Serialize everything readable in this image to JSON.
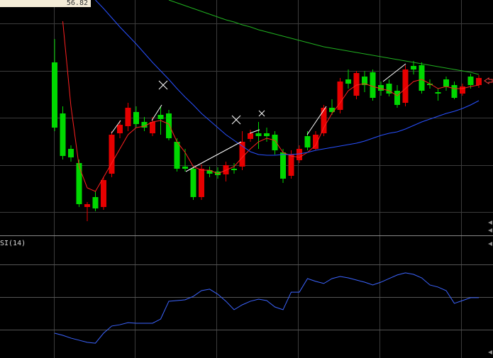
{
  "chart_data": [
    {
      "type": "candlestick",
      "label": "56.82",
      "ylim": [
        0,
        330
      ],
      "yticks": [
        31,
        97,
        164,
        230,
        297
      ],
      "up_color": "#e60000",
      "down_color": "#00d800",
      "open": [
        242,
        170,
        120,
        100,
        38,
        52,
        38,
        85,
        142,
        152,
        172,
        158,
        142,
        168,
        170,
        130,
        95,
        92,
        52,
        90,
        88,
        84,
        92,
        95,
        134,
        142,
        142,
        140,
        115,
        82,
        104,
        138,
        120,
        142,
        178,
        175,
        218,
        195,
        222,
        228,
        210,
        212,
        202,
        185,
        237,
        238,
        212,
        200,
        218,
        210,
        198,
        222,
        210
      ],
      "close": [
        150,
        110,
        108,
        42,
        42,
        36,
        76,
        140,
        154,
        178,
        155,
        150,
        158,
        162,
        135,
        92,
        92,
        52,
        92,
        85,
        83,
        97,
        90,
        130,
        142,
        138,
        138,
        118,
        78,
        112,
        120,
        122,
        140,
        178,
        172,
        215,
        212,
        227,
        210,
        192,
        202,
        198,
        182,
        232,
        232,
        202,
        210,
        198,
        208,
        192,
        208,
        210,
        220
      ],
      "high": [
        275,
        180,
        125,
        105,
        45,
        60,
        80,
        145,
        160,
        185,
        180,
        165,
        165,
        180,
        175,
        135,
        120,
        95,
        98,
        95,
        94,
        102,
        100,
        145,
        147,
        158,
        150,
        145,
        120,
        118,
        125,
        145,
        145,
        182,
        190,
        220,
        232,
        230,
        230,
        232,
        215,
        218,
        210,
        238,
        244,
        242,
        218,
        205,
        222,
        215,
        212,
        226,
        224
      ],
      "low": [
        145,
        105,
        102,
        38,
        18,
        32,
        34,
        80,
        135,
        145,
        150,
        145,
        138,
        140,
        132,
        88,
        88,
        48,
        48,
        80,
        78,
        74,
        85,
        90,
        130,
        120,
        130,
        112,
        72,
        78,
        100,
        118,
        118,
        138,
        168,
        170,
        205,
        190,
        200,
        188,
        195,
        194,
        178,
        180,
        225,
        198,
        205,
        188,
        202,
        190,
        195,
        205,
        206
      ],
      "lines": [
        {
          "color": "#ff2020",
          "values": [
            null,
            300,
            180,
            95,
            65,
            60,
            80,
            100,
            120,
            140,
            150,
            152,
            158,
            160,
            155,
            130,
            115,
            95,
            90,
            90,
            85,
            90,
            95,
            108,
            120,
            130,
            135,
            132,
            115,
            110,
            108,
            115,
            125,
            150,
            170,
            185,
            202,
            210,
            212,
            208,
            205,
            202,
            195,
            205,
            215,
            218,
            212,
            205,
            208,
            205,
            205,
            208,
            210
          ]
        },
        {
          "color": "#2850ff",
          "values": [
            null,
            null,
            null,
            null,
            null,
            330,
            318,
            305,
            292,
            280,
            268,
            255,
            242,
            230,
            218,
            205,
            193,
            182,
            170,
            160,
            150,
            140,
            132,
            124,
            116,
            112,
            111,
            111,
            112,
            112,
            113,
            115,
            118,
            120,
            122,
            124,
            126,
            128,
            131,
            135,
            139,
            142,
            144,
            148,
            153,
            158,
            162,
            166,
            170,
            173,
            177,
            182,
            188
          ]
        },
        {
          "color": "#20b020",
          "values": [
            null,
            null,
            null,
            null,
            null,
            null,
            null,
            null,
            null,
            null,
            null,
            null,
            null,
            null,
            330,
            326,
            322,
            318,
            314,
            310,
            306,
            302,
            299,
            295,
            292,
            288,
            285,
            282,
            279,
            276,
            273,
            270,
            267,
            264,
            262,
            260,
            258,
            256,
            254,
            252,
            250,
            248,
            246,
            244,
            242,
            240,
            238,
            236,
            234,
            232,
            230,
            228,
            225
          ]
        }
      ]
    },
    {
      "type": "line",
      "title": "SI(14)",
      "ylim": [
        12.6,
        86.5
      ],
      "yticks": [
        30,
        50,
        70
      ],
      "series": [
        {
          "color": "#3c64ff",
          "values": [
            27.8,
            26.5,
            24.8,
            23.5,
            22.2,
            21.7,
            27.8,
            32.2,
            33.0,
            34.3,
            33.9,
            33.9,
            33.9,
            36.5,
            47.4,
            47.8,
            48.3,
            50.4,
            53.9,
            54.8,
            51.7,
            47.4,
            42.2,
            45.2,
            47.4,
            48.7,
            47.8,
            43.9,
            42.2,
            53.0,
            53.0,
            61.3,
            59.6,
            58.3,
            61.3,
            62.6,
            61.7,
            60.4,
            59.1,
            57.4,
            59.1,
            61.3,
            63.5,
            64.8,
            63.9,
            61.7,
            57.4,
            56.1,
            53.9,
            46.1,
            47.8,
            49.6,
            49.6
          ]
        }
      ]
    }
  ]
}
